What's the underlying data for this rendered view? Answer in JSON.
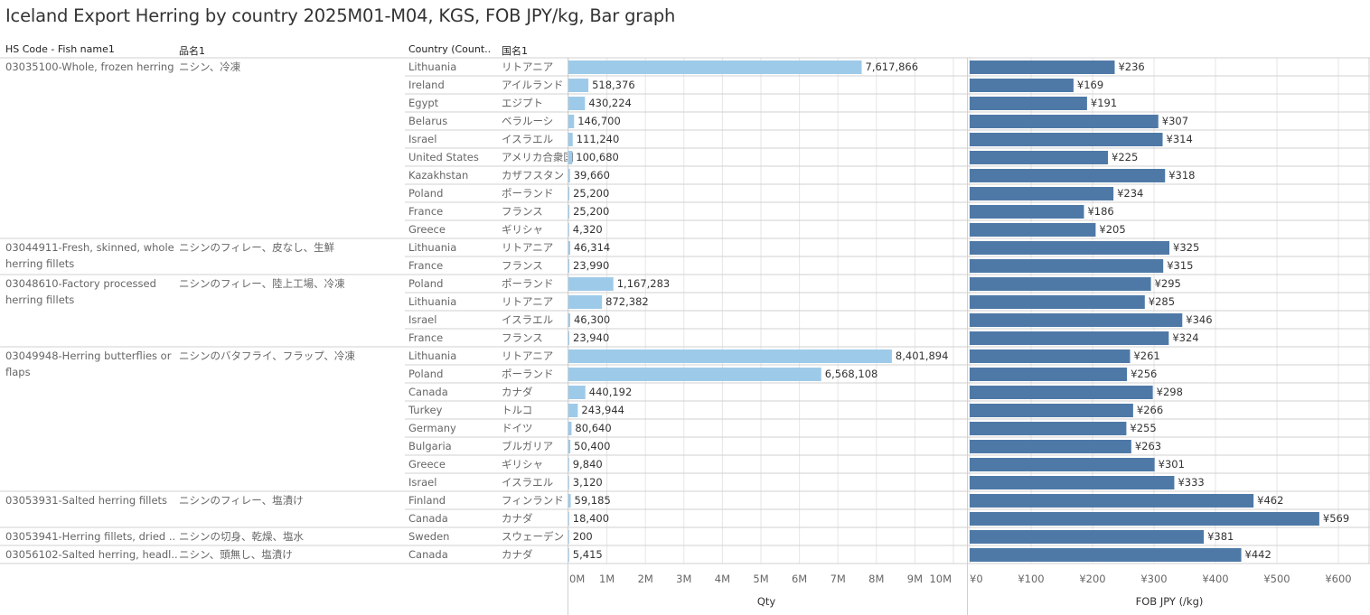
{
  "title": "Iceland Export Herring by country 2025M01-M04, KGS, FOB JPY/kg, Bar graph",
  "headers": {
    "hs": "HS Code - Fish name1",
    "jp_name": "品名1",
    "country": "Country (Count..",
    "country_jp": "国名1"
  },
  "colors": {
    "qty_bar": "#9ecae9",
    "fob_bar": "#4e79a7",
    "grid": "#e6e6e6",
    "sep": "#d0d0d0"
  },
  "chart_data": {
    "type": "bar",
    "orientation": "horizontal",
    "groups": [
      {
        "hs_lines": [
          "03035100-Whole, frozen herring"
        ],
        "jp_name": "ニシン、冷凍",
        "rows": [
          {
            "country": "Lithuania",
            "country_jp": "リトアニア",
            "qty": 7617866,
            "qty_label": "7,617,866",
            "fob": 236,
            "fob_label": "¥236"
          },
          {
            "country": "Ireland",
            "country_jp": "アイルランド",
            "qty": 518376,
            "qty_label": "518,376",
            "fob": 169,
            "fob_label": "¥169"
          },
          {
            "country": "Egypt",
            "country_jp": "エジプト",
            "qty": 430224,
            "qty_label": "430,224",
            "fob": 191,
            "fob_label": "¥191"
          },
          {
            "country": "Belarus",
            "country_jp": "ベラルーシ",
            "qty": 146700,
            "qty_label": "146,700",
            "fob": 307,
            "fob_label": "¥307"
          },
          {
            "country": "Israel",
            "country_jp": "イスラエル",
            "qty": 111240,
            "qty_label": "111,240",
            "fob": 314,
            "fob_label": "¥314"
          },
          {
            "country": "United States",
            "country_jp": "アメリカ合衆国",
            "qty": 100680,
            "qty_label": "100,680",
            "fob": 225,
            "fob_label": "¥225"
          },
          {
            "country": "Kazakhstan",
            "country_jp": "カザフスタン",
            "qty": 39660,
            "qty_label": "39,660",
            "fob": 318,
            "fob_label": "¥318"
          },
          {
            "country": "Poland",
            "country_jp": "ポーランド",
            "qty": 25200,
            "qty_label": "25,200",
            "fob": 234,
            "fob_label": "¥234"
          },
          {
            "country": "France",
            "country_jp": "フランス",
            "qty": 25200,
            "qty_label": "25,200",
            "fob": 186,
            "fob_label": "¥186"
          },
          {
            "country": "Greece",
            "country_jp": "ギリシャ",
            "qty": 4320,
            "qty_label": "4,320",
            "fob": 205,
            "fob_label": "¥205"
          }
        ]
      },
      {
        "hs_lines": [
          "03044911-Fresh, skinned, whole",
          "herring fillets"
        ],
        "jp_name": "ニシンのフィレー、皮なし、生鮮",
        "rows": [
          {
            "country": "Lithuania",
            "country_jp": "リトアニア",
            "qty": 46314,
            "qty_label": "46,314",
            "fob": 325,
            "fob_label": "¥325"
          },
          {
            "country": "France",
            "country_jp": "フランス",
            "qty": 23990,
            "qty_label": "23,990",
            "fob": 315,
            "fob_label": "¥315"
          }
        ]
      },
      {
        "hs_lines": [
          "03048610-Factory processed",
          "herring fillets"
        ],
        "jp_name": "ニシンのフィレー、陸上工場、冷凍",
        "rows": [
          {
            "country": "Poland",
            "country_jp": "ポーランド",
            "qty": 1167283,
            "qty_label": "1,167,283",
            "fob": 295,
            "fob_label": "¥295"
          },
          {
            "country": "Lithuania",
            "country_jp": "リトアニア",
            "qty": 872382,
            "qty_label": "872,382",
            "fob": 285,
            "fob_label": "¥285"
          },
          {
            "country": "Israel",
            "country_jp": "イスラエル",
            "qty": 46300,
            "qty_label": "46,300",
            "fob": 346,
            "fob_label": "¥346"
          },
          {
            "country": "France",
            "country_jp": "フランス",
            "qty": 23940,
            "qty_label": "23,940",
            "fob": 324,
            "fob_label": "¥324"
          }
        ]
      },
      {
        "hs_lines": [
          "03049948-Herring butterflies or",
          "flaps"
        ],
        "jp_name": "ニシンのバタフライ、フラップ、冷凍",
        "rows": [
          {
            "country": "Lithuania",
            "country_jp": "リトアニア",
            "qty": 8401894,
            "qty_label": "8,401,894",
            "fob": 261,
            "fob_label": "¥261"
          },
          {
            "country": "Poland",
            "country_jp": "ポーランド",
            "qty": 6568108,
            "qty_label": "6,568,108",
            "fob": 256,
            "fob_label": "¥256"
          },
          {
            "country": "Canada",
            "country_jp": "カナダ",
            "qty": 440192,
            "qty_label": "440,192",
            "fob": 298,
            "fob_label": "¥298"
          },
          {
            "country": "Turkey",
            "country_jp": "トルコ",
            "qty": 243944,
            "qty_label": "243,944",
            "fob": 266,
            "fob_label": "¥266"
          },
          {
            "country": "Germany",
            "country_jp": "ドイツ",
            "qty": 80640,
            "qty_label": "80,640",
            "fob": 255,
            "fob_label": "¥255"
          },
          {
            "country": "Bulgaria",
            "country_jp": "ブルガリア",
            "qty": 50400,
            "qty_label": "50,400",
            "fob": 263,
            "fob_label": "¥263"
          },
          {
            "country": "Greece",
            "country_jp": "ギリシャ",
            "qty": 9840,
            "qty_label": "9,840",
            "fob": 301,
            "fob_label": "¥301"
          },
          {
            "country": "Israel",
            "country_jp": "イスラエル",
            "qty": 3120,
            "qty_label": "3,120",
            "fob": 333,
            "fob_label": "¥333"
          }
        ]
      },
      {
        "hs_lines": [
          "03053931-Salted herring fillets"
        ],
        "jp_name": "ニシンのフィレー、塩漬け",
        "rows": [
          {
            "country": "Finland",
            "country_jp": "フィンランド",
            "qty": 59185,
            "qty_label": "59,185",
            "fob": 462,
            "fob_label": "¥462"
          },
          {
            "country": "Canada",
            "country_jp": "カナダ",
            "qty": 18400,
            "qty_label": "18,400",
            "fob": 569,
            "fob_label": "¥569"
          }
        ]
      },
      {
        "hs_lines": [
          "03053941-Herring fillets, dried .."
        ],
        "jp_name": "ニシンの切身、乾燥、塩水",
        "rows": [
          {
            "country": "Sweden",
            "country_jp": "スウェーデン",
            "qty": 200,
            "qty_label": "200",
            "fob": 381,
            "fob_label": "¥381"
          }
        ]
      },
      {
        "hs_lines": [
          "03056102-Salted herring, headl.."
        ],
        "jp_name": "ニシン、頭無し、塩漬け",
        "rows": [
          {
            "country": "Canada",
            "country_jp": "カナダ",
            "qty": 5415,
            "qty_label": "5,415",
            "fob": 442,
            "fob_label": "¥442"
          }
        ]
      }
    ],
    "qty_axis": {
      "title": "Qty",
      "range": [
        0,
        10000000
      ],
      "ticks": [
        "0M",
        "1M",
        "2M",
        "3M",
        "4M",
        "5M",
        "6M",
        "7M",
        "8M",
        "9M",
        "10M"
      ]
    },
    "fob_axis": {
      "title": "FOB JPY (/kg)",
      "range": [
        0,
        650
      ],
      "ticks": [
        "¥0",
        "¥100",
        "¥200",
        "¥300",
        "¥400",
        "¥500",
        "¥600"
      ]
    },
    "grid": true
  }
}
